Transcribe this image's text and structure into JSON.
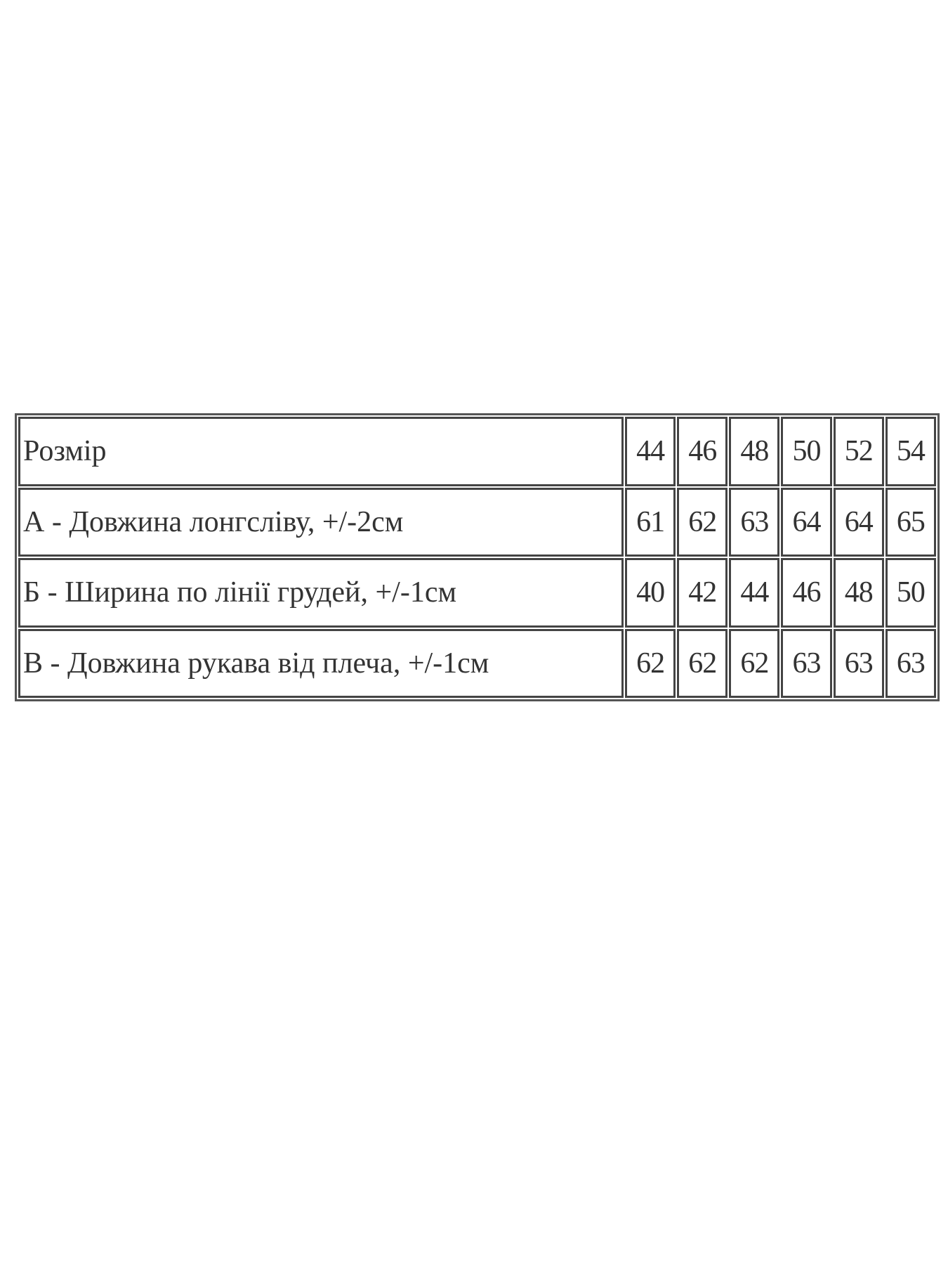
{
  "table": {
    "header": {
      "label": "Розмір",
      "sizes": [
        "44",
        "46",
        "48",
        "50",
        "52",
        "54"
      ]
    },
    "rows": [
      {
        "label": "А - Довжина лонгсліву, +/-2см",
        "values": [
          "61",
          "62",
          "63",
          "64",
          "64",
          "65"
        ]
      },
      {
        "label": "Б - Ширина по лінії грудей, +/-1см",
        "values": [
          "40",
          "42",
          "44",
          "46",
          "48",
          "50"
        ]
      },
      {
        "label": "В - Довжина рукава від плеча, +/-1см",
        "values": [
          "62",
          "62",
          "62",
          "63",
          "63",
          "63"
        ]
      }
    ]
  }
}
